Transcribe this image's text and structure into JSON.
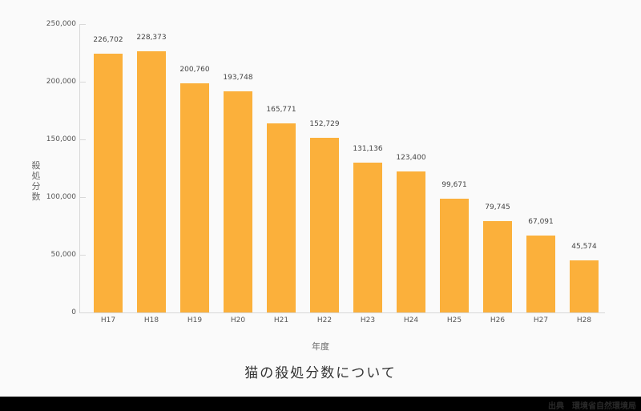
{
  "chart_data": {
    "type": "bar",
    "title": "猫の殺処分数について",
    "xlabel": "年度",
    "ylabel": "殺処分数",
    "categories": [
      "H17",
      "H18",
      "H19",
      "H20",
      "H21",
      "H22",
      "H23",
      "H24",
      "H25",
      "H26",
      "H27",
      "H28"
    ],
    "values": [
      226702,
      228373,
      200760,
      193748,
      165771,
      152729,
      131136,
      123400,
      99671,
      79745,
      67091,
      45574
    ],
    "value_labels": [
      "226,702",
      "228,373",
      "200,760",
      "193,748",
      "165,771",
      "152,729",
      "131,136",
      "123,400",
      "99,671",
      "79,745",
      "67,091",
      "45,574"
    ],
    "ylim": [
      0,
      250000
    ],
    "yticks": [
      0,
      50000,
      100000,
      150000,
      200000,
      250000
    ],
    "ytick_labels": [
      "0",
      "50,000",
      "100,000",
      "150,000",
      "200,000",
      "250,000"
    ],
    "grid": false,
    "legend": null,
    "bar_color": "#fbb03b"
  },
  "footer": {
    "source": "出典　環境省自然環境局"
  },
  "colors": {
    "background": "#fafafa",
    "bar": "#fbb03b",
    "footer": "#000000"
  }
}
